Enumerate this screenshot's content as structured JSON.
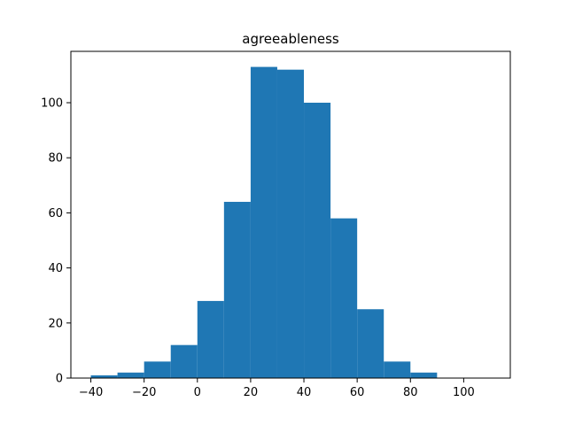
{
  "chart_data": {
    "type": "bar",
    "title": "agreeableness",
    "xlabel": "",
    "ylabel": "",
    "bar_color": "#1f77b4",
    "bins": [
      {
        "x0": -40,
        "x1": -30,
        "count": 1
      },
      {
        "x0": -30,
        "x1": -20,
        "count": 2
      },
      {
        "x0": -20,
        "x1": -10,
        "count": 6
      },
      {
        "x0": -10,
        "x1": 0,
        "count": 12
      },
      {
        "x0": 0,
        "x1": 10,
        "count": 28
      },
      {
        "x0": 10,
        "x1": 20,
        "count": 64
      },
      {
        "x0": 20,
        "x1": 30,
        "count": 113
      },
      {
        "x0": 30,
        "x1": 40,
        "count": 112
      },
      {
        "x0": 40,
        "x1": 50,
        "count": 100
      },
      {
        "x0": 50,
        "x1": 60,
        "count": 58
      },
      {
        "x0": 60,
        "x1": 70,
        "count": 25
      },
      {
        "x0": 70,
        "x1": 80,
        "count": 6
      },
      {
        "x0": 80,
        "x1": 90,
        "count": 2
      },
      {
        "x0": 90,
        "x1": 100,
        "count": 0
      },
      {
        "x0": 100,
        "x1": 110,
        "count": 0
      }
    ],
    "xlim": [
      -47.5,
      117.5
    ],
    "ylim": [
      0,
      118.65
    ],
    "xticks": [
      -40,
      -20,
      0,
      20,
      40,
      60,
      80,
      100
    ],
    "xtick_labels": [
      "−40",
      "−20",
      "0",
      "20",
      "40",
      "60",
      "80",
      "100"
    ],
    "yticks": [
      0,
      20,
      40,
      60,
      80,
      100
    ],
    "ytick_labels": [
      "0",
      "20",
      "40",
      "60",
      "80",
      "100"
    ],
    "grid": false,
    "legend": "none"
  }
}
